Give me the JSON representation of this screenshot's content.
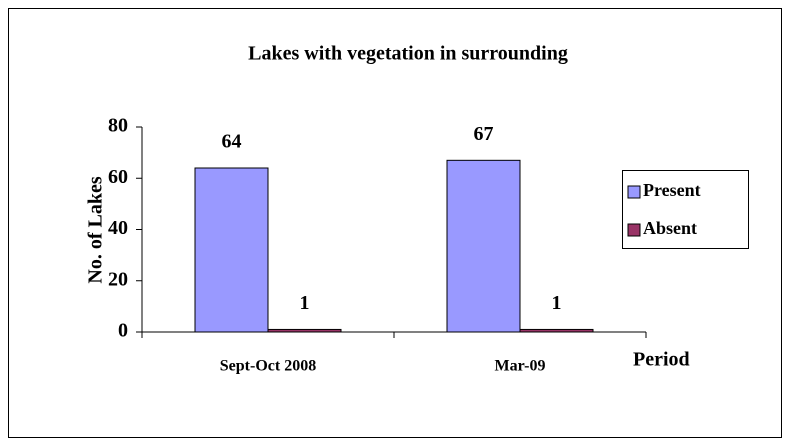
{
  "chart_data": {
    "type": "bar",
    "title": "Lakes with vegetation in surrounding",
    "x_label": "Period",
    "y_label": "No. of Lakes",
    "categories": [
      "Sept-Oct 2008",
      "Mar-09"
    ],
    "series": [
      {
        "name": "Present",
        "color": "#9999ff",
        "values": [
          64,
          67
        ]
      },
      {
        "name": "Absent",
        "color": "#993366",
        "values": [
          1,
          1
        ]
      }
    ],
    "ylim": [
      0,
      80
    ],
    "yticks": [
      0,
      20,
      40,
      60,
      80
    ],
    "grid": false,
    "legend": "right"
  }
}
